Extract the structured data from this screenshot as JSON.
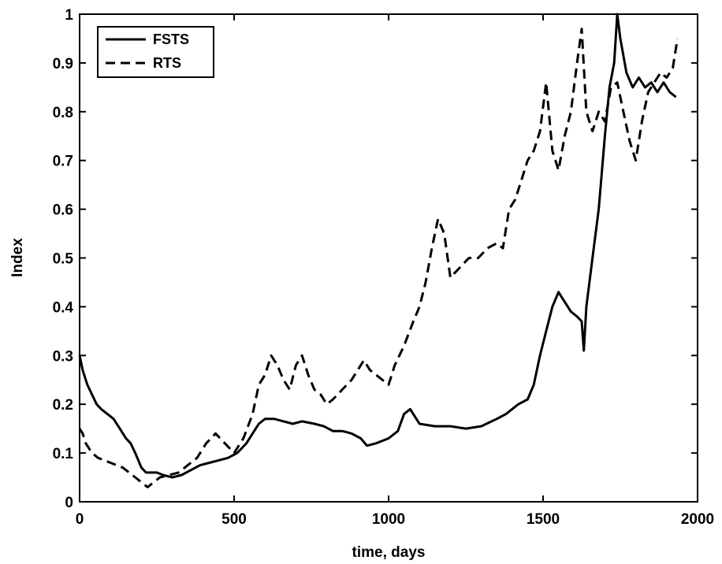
{
  "chart_data": {
    "type": "line",
    "title": "",
    "xlabel": "time, days",
    "ylabel": "Index",
    "xlim": [
      0,
      2000
    ],
    "ylim": [
      0,
      1
    ],
    "xticks": [
      0,
      500,
      1000,
      1500,
      2000
    ],
    "yticks": [
      0,
      0.1,
      0.2,
      0.3,
      0.4,
      0.5,
      0.6,
      0.7,
      0.8,
      0.9,
      1
    ],
    "xtick_labels": [
      "0",
      "500",
      "1000",
      "1500",
      "2000"
    ],
    "ytick_labels": [
      "0",
      "0.1",
      "0.2",
      "0.3",
      "0.4",
      "0.5",
      "0.6",
      "0.7",
      "0.8",
      "0.9",
      "1"
    ],
    "grid": false,
    "legend_position": "top-left",
    "series": [
      {
        "name": "FSTS",
        "style": "solid",
        "color": "#000000",
        "x": [
          0,
          10,
          25,
          40,
          55,
          70,
          90,
          110,
          130,
          150,
          165,
          180,
          200,
          215,
          230,
          250,
          270,
          300,
          330,
          360,
          390,
          420,
          450,
          480,
          510,
          540,
          560,
          580,
          600,
          630,
          660,
          690,
          720,
          760,
          790,
          820,
          850,
          880,
          910,
          930,
          960,
          1000,
          1030,
          1050,
          1070,
          1100,
          1150,
          1200,
          1250,
          1300,
          1350,
          1380,
          1420,
          1450,
          1470,
          1490,
          1510,
          1530,
          1550,
          1570,
          1590,
          1610,
          1625,
          1632,
          1640,
          1660,
          1680,
          1700,
          1715,
          1730,
          1740,
          1750,
          1770,
          1790,
          1810,
          1830,
          1850,
          1870,
          1890,
          1910,
          1930
        ],
        "values": [
          0.3,
          0.27,
          0.24,
          0.22,
          0.2,
          0.19,
          0.18,
          0.17,
          0.15,
          0.13,
          0.12,
          0.1,
          0.07,
          0.06,
          0.06,
          0.06,
          0.055,
          0.05,
          0.055,
          0.065,
          0.075,
          0.08,
          0.085,
          0.09,
          0.1,
          0.12,
          0.14,
          0.16,
          0.17,
          0.17,
          0.165,
          0.16,
          0.165,
          0.16,
          0.155,
          0.145,
          0.145,
          0.14,
          0.13,
          0.115,
          0.12,
          0.13,
          0.145,
          0.18,
          0.19,
          0.16,
          0.155,
          0.155,
          0.15,
          0.155,
          0.17,
          0.18,
          0.2,
          0.21,
          0.24,
          0.3,
          0.35,
          0.4,
          0.43,
          0.41,
          0.39,
          0.38,
          0.37,
          0.31,
          0.4,
          0.5,
          0.6,
          0.75,
          0.85,
          0.9,
          1.0,
          0.95,
          0.88,
          0.85,
          0.87,
          0.85,
          0.86,
          0.84,
          0.86,
          0.84,
          0.83
        ]
      },
      {
        "name": "RTS",
        "style": "dashed",
        "color": "#000000",
        "x": [
          0,
          10,
          20,
          40,
          60,
          80,
          100,
          120,
          140,
          160,
          180,
          200,
          220,
          240,
          260,
          290,
          320,
          350,
          380,
          410,
          440,
          470,
          500,
          530,
          560,
          580,
          600,
          620,
          640,
          660,
          680,
          700,
          720,
          740,
          760,
          780,
          800,
          820,
          850,
          880,
          900,
          920,
          940,
          960,
          980,
          1000,
          1020,
          1050,
          1080,
          1100,
          1120,
          1140,
          1160,
          1180,
          1200,
          1230,
          1260,
          1290,
          1320,
          1350,
          1370,
          1390,
          1410,
          1430,
          1450,
          1470,
          1490,
          1510,
          1530,
          1550,
          1570,
          1590,
          1610,
          1625,
          1640,
          1660,
          1680,
          1700,
          1720,
          1740,
          1760,
          1780,
          1800,
          1820,
          1840,
          1860,
          1880,
          1900,
          1920,
          1935
        ],
        "values": [
          0.15,
          0.14,
          0.12,
          0.1,
          0.09,
          0.085,
          0.08,
          0.075,
          0.07,
          0.06,
          0.05,
          0.04,
          0.03,
          0.04,
          0.05,
          0.055,
          0.06,
          0.075,
          0.09,
          0.12,
          0.14,
          0.12,
          0.1,
          0.13,
          0.18,
          0.24,
          0.26,
          0.3,
          0.28,
          0.25,
          0.23,
          0.28,
          0.3,
          0.26,
          0.23,
          0.22,
          0.2,
          0.21,
          0.23,
          0.25,
          0.27,
          0.29,
          0.27,
          0.26,
          0.25,
          0.24,
          0.28,
          0.32,
          0.37,
          0.4,
          0.45,
          0.52,
          0.58,
          0.55,
          0.46,
          0.48,
          0.5,
          0.5,
          0.52,
          0.53,
          0.52,
          0.6,
          0.62,
          0.66,
          0.7,
          0.72,
          0.76,
          0.86,
          0.72,
          0.68,
          0.75,
          0.8,
          0.9,
          0.97,
          0.8,
          0.76,
          0.8,
          0.78,
          0.85,
          0.86,
          0.8,
          0.74,
          0.7,
          0.78,
          0.84,
          0.86,
          0.88,
          0.87,
          0.89,
          0.95
        ]
      }
    ]
  }
}
